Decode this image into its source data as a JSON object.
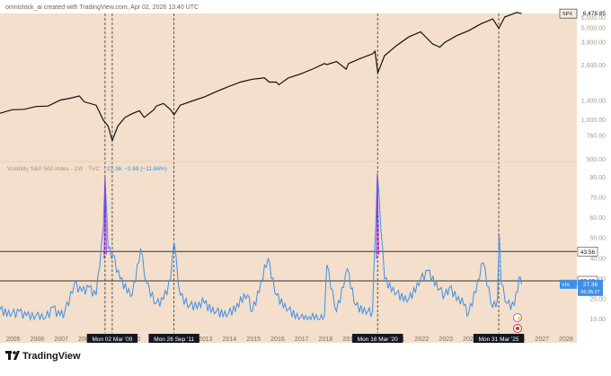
{
  "header": {
    "attribution": "omnistock_ai created with TradingView.com, Apr 02, 2026 13:40 UTC"
  },
  "footer": {
    "brand": "TradingView",
    "logo_icon": "tradingview-logo-icon"
  },
  "colors": {
    "background": "#f3dfcb",
    "spx_line": "#111111",
    "vix_line": "#3f8fe6",
    "vix_spike": "#9b30e0",
    "level_line": "#333333",
    "event_line": "#333333"
  },
  "chart_data": [
    {
      "type": "line",
      "name": "spx-panel",
      "series": [
        {
          "name": "SPX",
          "last_value_label": "6,478.85",
          "x": [
            2004.5,
            2005,
            2005.5,
            2006,
            2006.5,
            2007,
            2007.5,
            2007.8,
            2008,
            2008.5,
            2008.8,
            2009.0,
            2009.17,
            2009.4,
            2009.7,
            2010,
            2010.3,
            2010.5,
            2010.9,
            2011,
            2011.3,
            2011.6,
            2011.74,
            2012,
            2012.5,
            2013,
            2013.5,
            2014,
            2014.5,
            2015,
            2015.5,
            2015.7,
            2016,
            2016.1,
            2016.5,
            2017,
            2017.5,
            2018,
            2018.1,
            2018.5,
            2018.9,
            2019,
            2019.5,
            2020,
            2020.1,
            2020.22,
            2020.5,
            2021,
            2021.5,
            2022,
            2022.5,
            2022.8,
            2023,
            2023.5,
            2024,
            2024.5,
            2025,
            2025.25,
            2025.5,
            2025.8,
            2026,
            2026.2
          ],
          "y": [
            1130,
            1200,
            1210,
            1270,
            1280,
            1420,
            1480,
            1530,
            1380,
            1300,
            1000,
            900,
            700,
            900,
            1050,
            1120,
            1180,
            1050,
            1200,
            1280,
            1340,
            1200,
            1100,
            1300,
            1400,
            1500,
            1650,
            1800,
            1950,
            2050,
            2100,
            1950,
            1950,
            1860,
            2100,
            2250,
            2450,
            2700,
            2650,
            2800,
            2450,
            2700,
            2950,
            3200,
            3350,
            2300,
            3100,
            3700,
            4300,
            4700,
            3800,
            3600,
            3900,
            4400,
            4800,
            5400,
            5900,
            5000,
            6100,
            6400,
            6600,
            6478.85
          ]
        }
      ],
      "y_ticks": [
        "6,000.00",
        "5,000.00",
        "3,900.00",
        "2,600.00",
        "1,400.00",
        "1,000.00",
        "760.00",
        "500.00"
      ],
      "scale": "log",
      "ylim": [
        500,
        6000
      ]
    },
    {
      "type": "line",
      "name": "vix-panel",
      "title": "Volatility S&P 500 Index · 1W · TVC",
      "legend_value": "27.36",
      "legend_change": "−3.68 (−11.86%)",
      "series": [
        {
          "name": "VIX",
          "last_value_label": "27.36",
          "countdown_label": "06:35:27",
          "x": [
            2004.5,
            2005,
            2005.3,
            2005.6,
            2006,
            2006.4,
            2006.7,
            2007,
            2007.2,
            2007.6,
            2007.9,
            2008.2,
            2008.5,
            2008.8,
            2008.87,
            2009.0,
            2009.2,
            2009.5,
            2010,
            2010.35,
            2010.6,
            2011,
            2011.3,
            2011.6,
            2011.74,
            2012,
            2012.4,
            2013,
            2013.5,
            2014,
            2014.8,
            2015,
            2015.65,
            2016,
            2016.5,
            2017,
            2017.8,
            2018,
            2018.1,
            2018.5,
            2018.95,
            2019.3,
            2019.8,
            2020.0,
            2020.2,
            2020.5,
            2021,
            2021.5,
            2022,
            2022.3,
            2022.8,
            2023,
            2023.2,
            2023.8,
            2024,
            2024.6,
            2025,
            2025.2,
            2025.27,
            2025.35,
            2025.6,
            2025.9,
            2026.1,
            2026.2
          ],
          "y": [
            15,
            13,
            14,
            12,
            12,
            11,
            16,
            12,
            14,
            28,
            24,
            26,
            22,
            55,
            80,
            45,
            42,
            30,
            22,
            45,
            28,
            18,
            20,
            30,
            48,
            22,
            17,
            18,
            14,
            13,
            22,
            14,
            40,
            22,
            15,
            11,
            10,
            12,
            37,
            14,
            35,
            17,
            14,
            14,
            82,
            30,
            23,
            20,
            30,
            34,
            25,
            22,
            26,
            17,
            13,
            38,
            16,
            20,
            52,
            28,
            18,
            17,
            31,
            27.36
          ]
        }
      ],
      "levels": [
        {
          "value": 43.56,
          "label": "43.56"
        },
        {
          "value": 29.06,
          "label": "29.06"
        }
      ],
      "y_ticks": [
        "80.00",
        "70.00",
        "60.00",
        "50.00",
        "40.00",
        "30.00",
        "20.00",
        "10.00"
      ],
      "ylim": [
        10,
        80
      ]
    }
  ],
  "x_axis": {
    "ticks": [
      "2005",
      "2006",
      "2007",
      "2008",
      "2010",
      "2011",
      "2012",
      "2013",
      "2014",
      "2015",
      "2016",
      "2017",
      "2018",
      "2019",
      "2021",
      "2022",
      "2023",
      "2024",
      "2026",
      "2027",
      "2028"
    ]
  },
  "events": [
    {
      "x": 2008.87,
      "label": "M"
    },
    {
      "x": 2009.17,
      "label": "Mon 02 Mar '09"
    },
    {
      "x": 2011.74,
      "label": "Mon 26 Sep '11"
    },
    {
      "x": 2020.21,
      "label": "Mon 16 Mar '20"
    },
    {
      "x": 2025.25,
      "label": "Mon 31 Mar '25"
    }
  ]
}
